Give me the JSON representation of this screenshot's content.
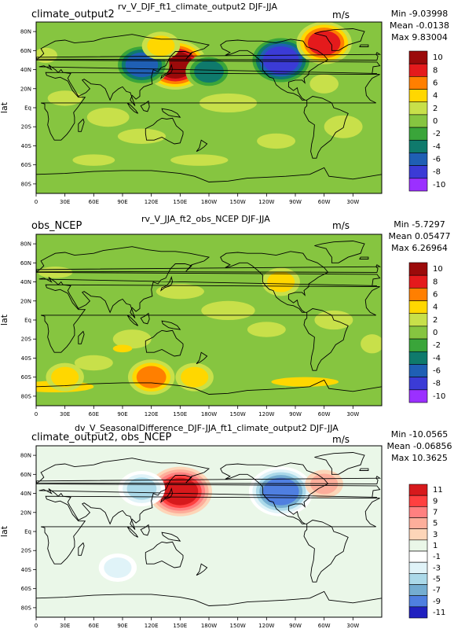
{
  "chart_data": [
    {
      "type": "contour-map",
      "title": "rv_V_DJF_ft1_climate_output2  DJF-JJA",
      "left_title": "climate_output2",
      "units": "m/s",
      "ylabel": "lat",
      "stats": {
        "min": "Min -9.03998",
        "mean": "Mean -0.0138",
        "max": "Max 9.83004"
      },
      "x_ticks": [
        "0",
        "30E",
        "60E",
        "90E",
        "120E",
        "150E",
        "180W",
        "150W",
        "120W",
        "90W",
        "60W",
        "30W"
      ],
      "y_ticks": [
        "80N",
        "60N",
        "40N",
        "20N",
        "Eq",
        "20S",
        "40S",
        "60S",
        "80S"
      ],
      "colorbar": {
        "labels": [
          "10",
          "8",
          "6",
          "4",
          "2",
          "0",
          "-2",
          "-4",
          "-6",
          "-8",
          "-10"
        ],
        "colors": [
          "#9b0a0a",
          "#e41a1c",
          "#ff7f00",
          "#ffd700",
          "#c8e04a",
          "#86c540",
          "#3aa53a",
          "#0f7a6c",
          "#1f5fb4",
          "#3b3bd6",
          "#9b30ff"
        ]
      },
      "background_level": "-0.5 to 0.5 (olive/green)",
      "anomalies": [
        {
          "lon": 145,
          "lat": 45,
          "value": 9,
          "note": "strong positive over N Pacific"
        },
        {
          "lon": 110,
          "lat": 45,
          "value": -8,
          "note": "negative over E Asia"
        },
        {
          "lon": 130,
          "lat": 65,
          "value": 4
        },
        {
          "lon": 180,
          "lat": 38,
          "value": -5
        },
        {
          "lon": 255,
          "lat": 50,
          "value": -9,
          "note": "negative over W North America"
        },
        {
          "lon": 300,
          "lat": 68,
          "value": 8,
          "note": "positive over Greenland"
        }
      ]
    },
    {
      "type": "contour-map",
      "title": "rv_V_JJA_ft2_obs_NCEP  DJF-JJA",
      "left_title": "obs_NCEP",
      "units": "m/s",
      "ylabel": "lat",
      "stats": {
        "min": "Min -5.7297",
        "mean": "Mean 0.05477",
        "max": "Max 6.26964"
      },
      "x_ticks": [
        "0",
        "30E",
        "60E",
        "90E",
        "120E",
        "150E",
        "180W",
        "150W",
        "120W",
        "90W",
        "60W",
        "30W"
      ],
      "y_ticks": [
        "80N",
        "60N",
        "40N",
        "20N",
        "Eq",
        "20S",
        "40S",
        "60S",
        "80S"
      ],
      "colorbar": {
        "labels": [
          "10",
          "8",
          "6",
          "4",
          "2",
          "0",
          "-2",
          "-4",
          "-6",
          "-8",
          "-10"
        ],
        "colors": [
          "#9b0a0a",
          "#e41a1c",
          "#ff7f00",
          "#ffd700",
          "#c8e04a",
          "#86c540",
          "#3aa53a",
          "#0f7a6c",
          "#1f5fb4",
          "#3b3bd6",
          "#9b30ff"
        ]
      },
      "anomalies": [
        {
          "lon": 120,
          "lat": -60,
          "value": 5
        },
        {
          "lon": 165,
          "lat": -60,
          "value": 3
        },
        {
          "lon": 255,
          "lat": 40,
          "value": 3
        },
        {
          "lon": 30,
          "lat": -60,
          "value": 3
        }
      ]
    },
    {
      "type": "contour-map",
      "title": "dv_V_SeasonalDifference_DJF-JJA_ft1_climate_output2  DJF-JJA",
      "left_title": "climate_output2, obs_NCEP",
      "units": "m/s",
      "ylabel": "lat",
      "stats": {
        "min": "Min -10.0565",
        "mean": "Mean -0.06856",
        "max": "Max 10.3625"
      },
      "x_ticks": [
        "0",
        "30E",
        "60E",
        "90E",
        "120E",
        "150E",
        "180W",
        "150W",
        "120W",
        "90W",
        "60W",
        "30W"
      ],
      "y_ticks": [
        "80N",
        "60N",
        "40N",
        "20N",
        "Eq",
        "20S",
        "40S",
        "60S",
        "80S"
      ],
      "colorbar": {
        "labels": [
          "11",
          "9",
          "7",
          "5",
          "3",
          "1",
          "-1",
          "-3",
          "-5",
          "-7",
          "-9",
          "-11"
        ],
        "colors": [
          "#d7191c",
          "#ff4040",
          "#ff8080",
          "#fdae9b",
          "#fdd5b8",
          "#eaf7e8",
          "#ffffff",
          "#e0f3f8",
          "#abd9e9",
          "#74add1",
          "#4f7fe0",
          "#2020c0"
        ]
      },
      "anomalies": [
        {
          "lon": 150,
          "lat": 42,
          "value": 9,
          "note": "strong positive over N Pacific"
        },
        {
          "lon": 255,
          "lat": 42,
          "value": -10,
          "note": "strong negative over W North America"
        },
        {
          "lon": 110,
          "lat": 45,
          "value": -5
        },
        {
          "lon": 300,
          "lat": 50,
          "value": 3
        },
        {
          "lon": 85,
          "lat": -38,
          "value": -3
        }
      ]
    }
  ]
}
